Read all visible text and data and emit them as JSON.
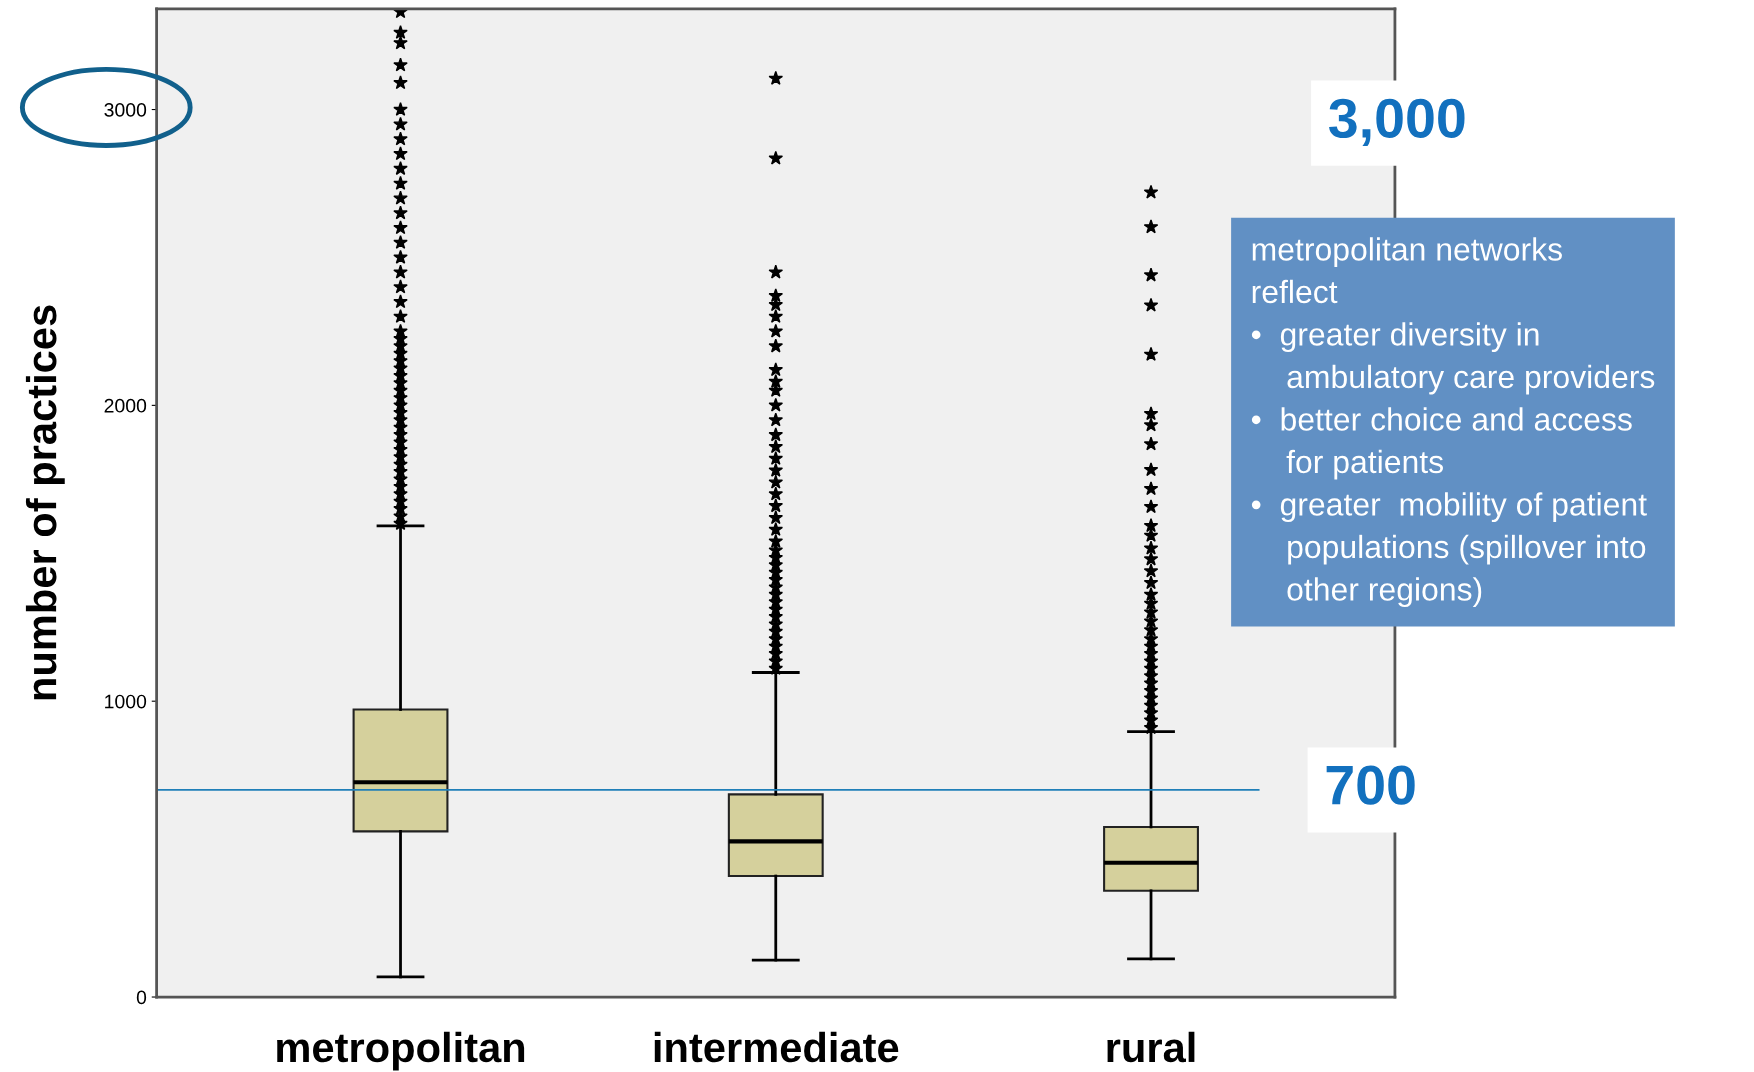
{
  "chart_data": {
    "type": "box",
    "ylabel": "number of practices",
    "categories": [
      "metropolitan",
      "intermediate",
      "rural"
    ],
    "colors": [
      "#d5d09c",
      "#d5d09c",
      "#d5d09c"
    ],
    "boxes": [
      {
        "low": 68,
        "q1": 560,
        "median": 726,
        "q3": 972,
        "high": 1593,
        "outliers": [
          1600,
          1625,
          1650,
          1675,
          1700,
          1725,
          1750,
          1775,
          1800,
          1825,
          1850,
          1875,
          1900,
          1925,
          1950,
          1975,
          2000,
          2025,
          2050,
          2075,
          2100,
          2125,
          2150,
          2175,
          2200,
          2225,
          2250,
          2300,
          2350,
          2400,
          2450,
          2500,
          2550,
          2600,
          2650,
          2700,
          2750,
          2800,
          2850,
          2900,
          2950,
          3000,
          3090,
          3150,
          3225,
          3260,
          3330
        ]
      },
      {
        "low": 125,
        "q1": 409,
        "median": 526,
        "q3": 685,
        "high": 1097,
        "outliers": [
          1110,
          1135,
          1160,
          1185,
          1210,
          1235,
          1260,
          1285,
          1310,
          1335,
          1360,
          1385,
          1410,
          1435,
          1460,
          1485,
          1510,
          1540,
          1580,
          1620,
          1660,
          1700,
          1740,
          1780,
          1820,
          1860,
          1900,
          1950,
          2000,
          2050,
          2080,
          2120,
          2200,
          2250,
          2300,
          2340,
          2370,
          2450,
          2835,
          3105
        ]
      },
      {
        "low": 129,
        "q1": 359,
        "median": 454,
        "q3": 575,
        "high": 897,
        "outliers": [
          910,
          935,
          960,
          985,
          1010,
          1035,
          1060,
          1085,
          1110,
          1135,
          1160,
          1185,
          1210,
          1240,
          1270,
          1300,
          1330,
          1360,
          1400,
          1440,
          1480,
          1517,
          1560,
          1593,
          1657,
          1718,
          1782,
          1869,
          1933,
          1971,
          2172,
          2338,
          2440,
          2603,
          2720
        ]
      }
    ],
    "ylim": [
      0,
      3340
    ],
    "yticks": [
      0,
      1000,
      2000,
      3000
    ],
    "marker": "star",
    "grid": false,
    "ref_lines": [
      {
        "axis": "y",
        "value": 700,
        "label": "700",
        "color": "#1f7fb8"
      }
    ],
    "annotations": [
      "3,000",
      "metropolitan networks\nreflect\n•  greater diversity in\n    ambulatory care providers\n•  better choice and access\n    for patients\n•  greater  mobility of patient\n    populations (spillover into\n    other regions)"
    ]
  }
}
